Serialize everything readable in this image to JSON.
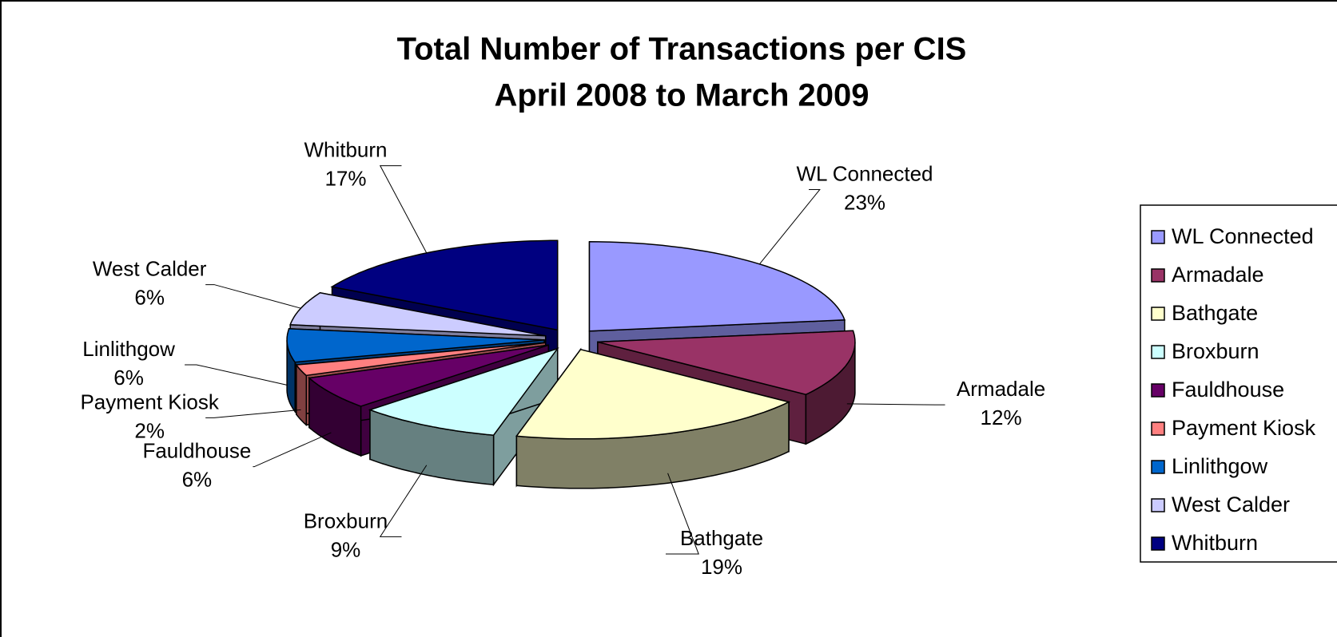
{
  "chart_data": {
    "type": "pie3d",
    "title": "Total Number of Transactions per CIS",
    "subtitle": "April 2008 to March 2009",
    "categories": [
      "WL Connected",
      "Armadale",
      "Bathgate",
      "Broxburn",
      "Fauldhouse",
      "Payment Kiosk",
      "Linlithgow",
      "West Calder",
      "Whitburn"
    ],
    "values": [
      23,
      12,
      19,
      9,
      6,
      2,
      6,
      6,
      17
    ],
    "value_labels": [
      "23%",
      "12%",
      "19%",
      "9%",
      "6%",
      "2%",
      "6%",
      "6%",
      "17%"
    ],
    "colors": [
      "#9999ff",
      "#993366",
      "#ffffcc",
      "#ccffff",
      "#660066",
      "#ff8080",
      "#0066cc",
      "#ccccff",
      "#000080"
    ],
    "legend_position": "right"
  }
}
